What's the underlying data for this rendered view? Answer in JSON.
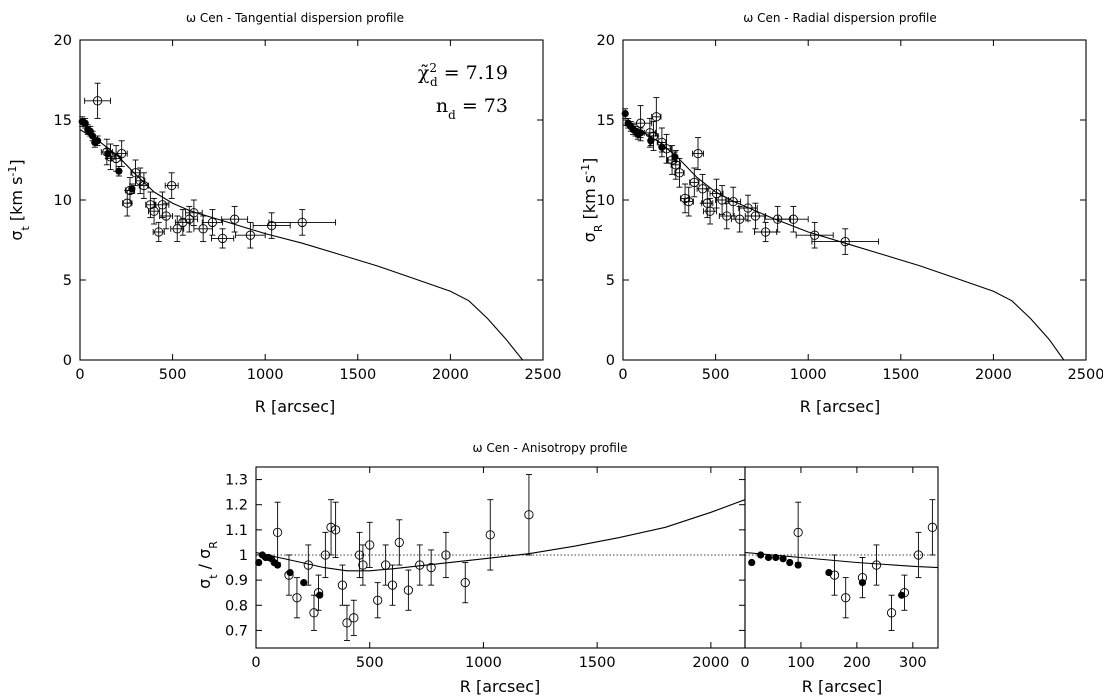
{
  "chart_data": [
    {
      "type": "scatter",
      "title": "ω Cen - Tangential dispersion profile",
      "xlabel": "R [arcsec]",
      "ylabel": "σt [km s-1]",
      "ylabel_parts": {
        "sym": "σ",
        "sub": "t",
        "unit_pre": " [km s",
        "sup": "-1",
        "unit_post": "]"
      },
      "xlim": [
        0,
        2500
      ],
      "ylim": [
        0,
        20
      ],
      "xticks": [
        "0",
        "500",
        "1000",
        "1500",
        "2000",
        "2500"
      ],
      "yticks": [
        "0",
        "5",
        "10",
        "15",
        "20"
      ],
      "annotations": [
        {
          "text": "χ̃²d = 7.19",
          "parts": {
            "sym": "χ̃",
            "sup": "2",
            "sub": "d",
            "rest": " = 7.19"
          }
        },
        {
          "text": "nd = 73",
          "parts": {
            "sym": "n",
            "sub": "d",
            "rest": " = 73"
          }
        }
      ],
      "series": [
        {
          "marker": "filled",
          "points": [
            [
              12,
              14.9,
              0.3
            ],
            [
              28,
              14.8,
              0.3
            ],
            [
              42,
              14.4,
              0.3
            ],
            [
              55,
              14.3,
              0.3
            ],
            [
              68,
              14.0,
              0.3
            ],
            [
              80,
              13.6,
              0.3
            ],
            [
              95,
              13.7,
              0.3
            ],
            [
              150,
              12.9,
              0.3
            ],
            [
              210,
              11.8,
              0.3
            ],
            [
              280,
              10.7,
              0.3
            ]
          ]
        },
        {
          "marker": "open",
          "points": [
            [
              95,
              16.2,
              1.1,
              70
            ],
            [
              145,
              13.0,
              0.8,
              30
            ],
            [
              165,
              12.7,
              0.8,
              25
            ],
            [
              195,
              12.6,
              0.8,
              25
            ],
            [
              225,
              12.9,
              0.8,
              30
            ],
            [
              255,
              9.8,
              0.8,
              25
            ],
            [
              270,
              10.6,
              0.8,
              25
            ],
            [
              300,
              11.7,
              0.8,
              25
            ],
            [
              325,
              11.2,
              0.8,
              25
            ],
            [
              345,
              10.9,
              0.8,
              25
            ],
            [
              380,
              9.7,
              0.8,
              25
            ],
            [
              400,
              9.3,
              0.8,
              30
            ],
            [
              425,
              8.0,
              0.6,
              30
            ],
            [
              445,
              9.7,
              0.8,
              35
            ],
            [
              465,
              9.0,
              0.8,
              35
            ],
            [
              495,
              10.9,
              0.8,
              35
            ],
            [
              525,
              8.2,
              0.8,
              35
            ],
            [
              555,
              8.6,
              0.8,
              40
            ],
            [
              590,
              8.8,
              0.8,
              45
            ],
            [
              615,
              9.2,
              0.8,
              45
            ],
            [
              665,
              8.2,
              0.8,
              50
            ],
            [
              715,
              8.6,
              0.8,
              55
            ],
            [
              770,
              7.6,
              0.6,
              60
            ],
            [
              835,
              8.8,
              0.8,
              70
            ],
            [
              920,
              7.8,
              0.8,
              80
            ],
            [
              1035,
              8.4,
              0.8,
              100
            ],
            [
              1200,
              8.6,
              0.8,
              180
            ]
          ]
        }
      ],
      "model": [
        [
          0,
          14.4
        ],
        [
          100,
          13.7
        ],
        [
          200,
          12.8
        ],
        [
          300,
          11.6
        ],
        [
          400,
          10.5
        ],
        [
          500,
          9.8
        ],
        [
          600,
          9.3
        ],
        [
          800,
          8.6
        ],
        [
          1000,
          7.9
        ],
        [
          1200,
          7.3
        ],
        [
          1400,
          6.6
        ],
        [
          1600,
          5.9
        ],
        [
          1800,
          5.1
        ],
        [
          2000,
          4.3
        ],
        [
          2100,
          3.7
        ],
        [
          2200,
          2.6
        ],
        [
          2300,
          1.3
        ],
        [
          2390,
          0
        ]
      ]
    },
    {
      "type": "scatter",
      "title": "ω Cen - Radial dispersion profile",
      "xlabel": "R [arcsec]",
      "ylabel": "σR [km s-1]",
      "ylabel_parts": {
        "sym": "σ",
        "sub": "R",
        "unit_pre": " [km s",
        "sup": "-1",
        "unit_post": "]"
      },
      "xlim": [
        0,
        2500
      ],
      "ylim": [
        0,
        20
      ],
      "xticks": [
        "0",
        "500",
        "1000",
        "1500",
        "2000",
        "2500"
      ],
      "yticks": [
        "0",
        "5",
        "10",
        "15",
        "20"
      ],
      "series": [
        {
          "marker": "filled",
          "points": [
            [
              12,
              15.4,
              0.3
            ],
            [
              28,
              14.8,
              0.3
            ],
            [
              42,
              14.6,
              0.3
            ],
            [
              55,
              14.4,
              0.3
            ],
            [
              68,
              14.3,
              0.3
            ],
            [
              80,
              14.1,
              0.3
            ],
            [
              95,
              14.2,
              0.3
            ],
            [
              150,
              13.7,
              0.3
            ],
            [
              210,
              13.3,
              0.3
            ],
            [
              280,
              12.7,
              0.3
            ]
          ]
        },
        {
          "marker": "open",
          "points": [
            [
              95,
              14.8,
              1.1,
              60
            ],
            [
              145,
              14.2,
              0.9,
              30
            ],
            [
              165,
              14.0,
              0.9,
              25
            ],
            [
              180,
              15.2,
              1.2,
              25
            ],
            [
              210,
              13.6,
              0.9,
              25
            ],
            [
              235,
              13.2,
              0.9,
              25
            ],
            [
              265,
              12.5,
              0.9,
              25
            ],
            [
              285,
              12.2,
              0.9,
              25
            ],
            [
              305,
              11.7,
              0.9,
              25
            ],
            [
              335,
              10.1,
              0.9,
              25
            ],
            [
              355,
              9.9,
              0.9,
              25
            ],
            [
              385,
              11.1,
              0.9,
              25
            ],
            [
              405,
              12.9,
              1.0,
              30
            ],
            [
              430,
              10.7,
              0.9,
              30
            ],
            [
              455,
              9.8,
              0.9,
              30
            ],
            [
              470,
              9.3,
              0.8,
              35
            ],
            [
              505,
              10.4,
              0.9,
              35
            ],
            [
              535,
              10.0,
              0.9,
              35
            ],
            [
              560,
              9.0,
              0.8,
              40
            ],
            [
              595,
              9.9,
              0.9,
              40
            ],
            [
              630,
              8.8,
              0.8,
              45
            ],
            [
              675,
              9.5,
              0.8,
              50
            ],
            [
              715,
              9.0,
              0.8,
              55
            ],
            [
              770,
              8.0,
              0.6,
              60
            ],
            [
              835,
              8.8,
              0.8,
              70
            ],
            [
              920,
              8.8,
              0.8,
              80
            ],
            [
              1035,
              7.8,
              0.8,
              100
            ],
            [
              1200,
              7.4,
              0.8,
              180
            ]
          ]
        }
      ],
      "model": [
        [
          0,
          14.7
        ],
        [
          100,
          14.3
        ],
        [
          200,
          13.6
        ],
        [
          300,
          12.6
        ],
        [
          400,
          11.4
        ],
        [
          500,
          10.5
        ],
        [
          600,
          9.9
        ],
        [
          800,
          8.9
        ],
        [
          1000,
          8.0
        ],
        [
          1200,
          7.3
        ],
        [
          1400,
          6.6
        ],
        [
          1600,
          5.9
        ],
        [
          1800,
          5.1
        ],
        [
          2000,
          4.3
        ],
        [
          2100,
          3.7
        ],
        [
          2200,
          2.6
        ],
        [
          2300,
          1.3
        ],
        [
          2380,
          0
        ]
      ]
    },
    {
      "type": "scatter",
      "title": "ω Cen - Anisotropy profile",
      "xlabel": "R [arcsec]",
      "ylabel": "σt / σR",
      "ylabel_parts": {
        "a": "σ",
        "asub": "t",
        "mid": " / ",
        "b": "σ",
        "bsub": "R"
      },
      "xlim": [
        0,
        2150
      ],
      "ylim": [
        0.63,
        1.35
      ],
      "xticks": [
        "0",
        "500",
        "1000",
        "1500",
        "2000"
      ],
      "yticks": [
        "0.7",
        "0.8",
        "0.9",
        "1",
        "1.1",
        "1.2",
        "1.3"
      ],
      "reference_line": 1,
      "series": [
        {
          "marker": "filled",
          "points": [
            [
              12,
              0.97,
              0
            ],
            [
              28,
              1.0,
              0
            ],
            [
              42,
              0.99,
              0
            ],
            [
              55,
              0.99,
              0
            ],
            [
              68,
              0.985,
              0
            ],
            [
              80,
              0.97,
              0
            ],
            [
              95,
              0.96,
              0
            ],
            [
              150,
              0.93,
              0
            ],
            [
              210,
              0.89,
              0
            ],
            [
              280,
              0.84,
              0
            ]
          ]
        },
        {
          "marker": "open",
          "points": [
            [
              95,
              1.09,
              0.12
            ],
            [
              145,
              0.92,
              0.08
            ],
            [
              180,
              0.83,
              0.08
            ],
            [
              230,
              0.96,
              0.08
            ],
            [
              255,
              0.77,
              0.07
            ],
            [
              275,
              0.85,
              0.07
            ],
            [
              305,
              1.0,
              0.09
            ],
            [
              330,
              1.11,
              0.11
            ],
            [
              350,
              1.1,
              0.11
            ],
            [
              380,
              0.88,
              0.08
            ],
            [
              400,
              0.73,
              0.07
            ],
            [
              430,
              0.75,
              0.07
            ],
            [
              455,
              1.0,
              0.09
            ],
            [
              470,
              0.96,
              0.08
            ],
            [
              500,
              1.04,
              0.09
            ],
            [
              535,
              0.82,
              0.07
            ],
            [
              570,
              0.96,
              0.08
            ],
            [
              600,
              0.88,
              0.08
            ],
            [
              630,
              1.05,
              0.09
            ],
            [
              670,
              0.86,
              0.08
            ],
            [
              720,
              0.96,
              0.08
            ],
            [
              770,
              0.95,
              0.07
            ],
            [
              835,
              1.0,
              0.09
            ],
            [
              920,
              0.89,
              0.08
            ],
            [
              1030,
              1.08,
              0.14
            ],
            [
              1200,
              1.16,
              0.16
            ]
          ]
        }
      ],
      "model": [
        [
          0,
          1.01
        ],
        [
          100,
          0.99
        ],
        [
          200,
          0.97
        ],
        [
          300,
          0.95
        ],
        [
          400,
          0.937
        ],
        [
          500,
          0.937
        ],
        [
          600,
          0.945
        ],
        [
          800,
          0.965
        ],
        [
          1000,
          0.985
        ],
        [
          1200,
          1.005
        ],
        [
          1400,
          1.035
        ],
        [
          1600,
          1.07
        ],
        [
          1800,
          1.11
        ],
        [
          2000,
          1.17
        ],
        [
          2150,
          1.22
        ]
      ]
    },
    {
      "type": "scatter",
      "title": "",
      "xlabel": "R [arcsec]",
      "ylabel": "",
      "xlim": [
        0,
        345
      ],
      "ylim": [
        0.63,
        1.35
      ],
      "xticks": [
        "0",
        "100",
        "200",
        "300"
      ],
      "yticks": [],
      "reference_line": 1,
      "series": [
        {
          "marker": "filled",
          "points": [
            [
              12,
              0.97,
              0
            ],
            [
              28,
              1.0,
              0
            ],
            [
              42,
              0.99,
              0
            ],
            [
              55,
              0.99,
              0
            ],
            [
              68,
              0.985,
              0
            ],
            [
              80,
              0.97,
              0
            ],
            [
              95,
              0.96,
              0
            ],
            [
              150,
              0.93,
              0
            ],
            [
              210,
              0.89,
              0
            ],
            [
              280,
              0.84,
              0
            ]
          ]
        },
        {
          "marker": "open",
          "points": [
            [
              95,
              1.09,
              0.12
            ],
            [
              160,
              0.92,
              0.08
            ],
            [
              180,
              0.83,
              0.08
            ],
            [
              210,
              0.91,
              0.08
            ],
            [
              235,
              0.96,
              0.08
            ],
            [
              262,
              0.77,
              0.07
            ],
            [
              285,
              0.85,
              0.07
            ],
            [
              310,
              1.0,
              0.09
            ],
            [
              335,
              1.11,
              0.11
            ]
          ]
        }
      ],
      "model": [
        [
          0,
          1.01
        ],
        [
          100,
          0.99
        ],
        [
          200,
          0.97
        ],
        [
          300,
          0.955
        ],
        [
          345,
          0.95
        ]
      ]
    }
  ]
}
